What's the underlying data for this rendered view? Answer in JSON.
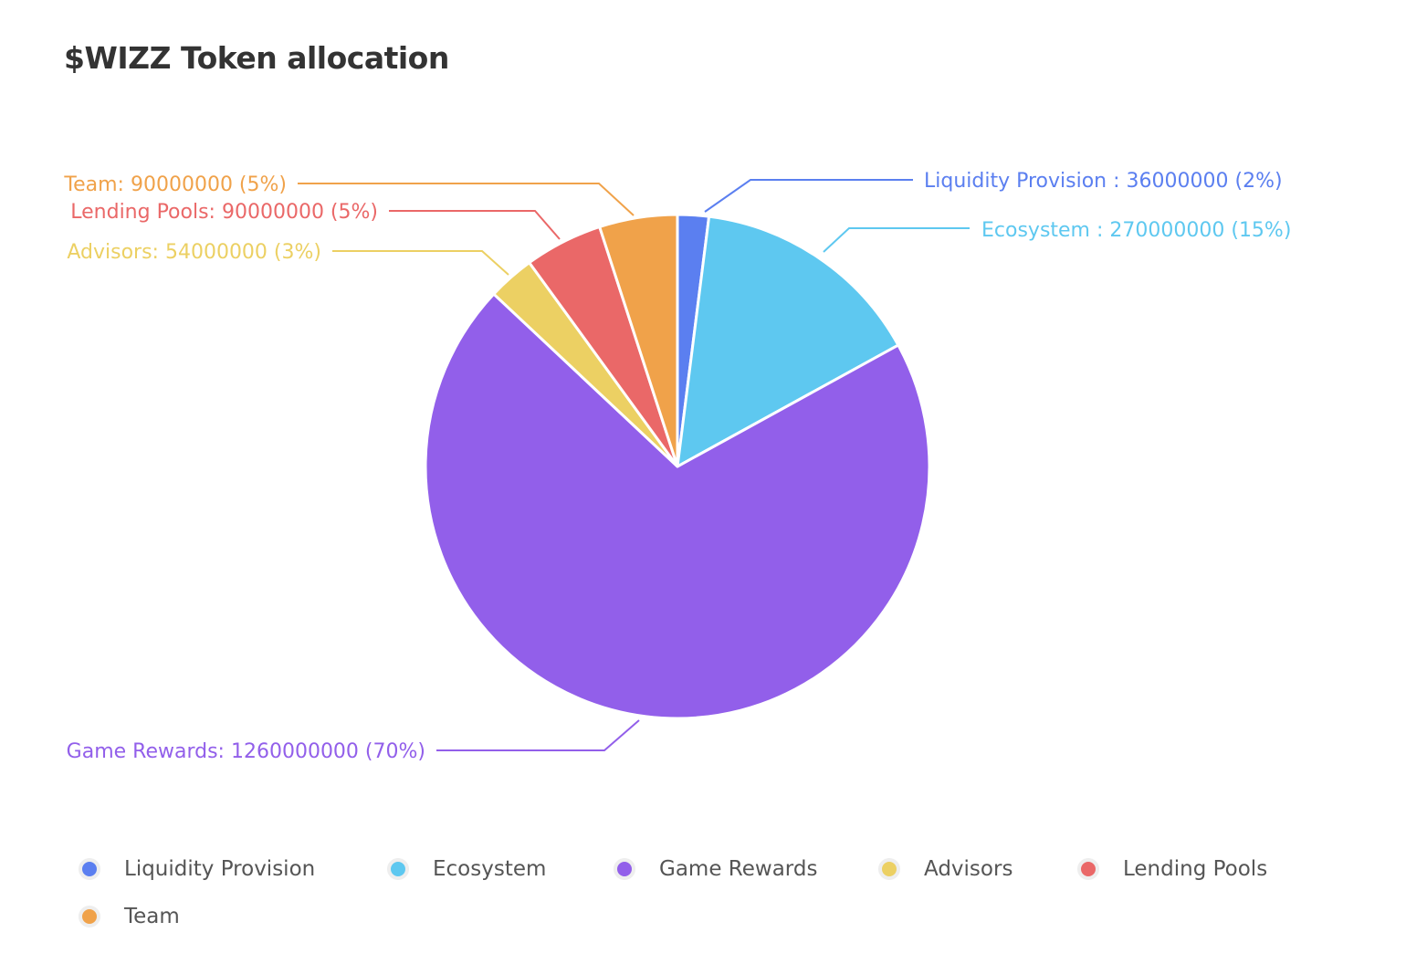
{
  "chart_data": {
    "type": "pie",
    "title": "$WIZZ Token allocation",
    "slices": [
      {
        "name": "Liquidity Provision",
        "value": 36000000,
        "percent": 2,
        "color": "#5b7ff0",
        "label": "Liquidity Provision : 36000000 (2%)"
      },
      {
        "name": "Ecosystem",
        "value": 270000000,
        "percent": 15,
        "color": "#5ec8f0",
        "label": "Ecosystem : 270000000 (15%)"
      },
      {
        "name": "Game Rewards",
        "value": 1260000000,
        "percent": 70,
        "color": "#925fea",
        "label": "Game Rewards: 1260000000 (70%)"
      },
      {
        "name": "Advisors",
        "value": 54000000,
        "percent": 3,
        "color": "#ecd063",
        "label": "Advisors: 54000000 (3%)"
      },
      {
        "name": "Lending Pools",
        "value": 90000000,
        "percent": 5,
        "color": "#ea6868",
        "label": "Lending Pools: 90000000 (5%)"
      },
      {
        "name": "Team",
        "value": 90000000,
        "percent": 5,
        "color": "#f0a24a",
        "label": "Team: 90000000 (5%)"
      }
    ],
    "legend": [
      "Liquidity Provision",
      "Ecosystem",
      "Game Rewards",
      "Advisors",
      "Lending Pools",
      "Team"
    ],
    "legend_position": "bottom"
  }
}
